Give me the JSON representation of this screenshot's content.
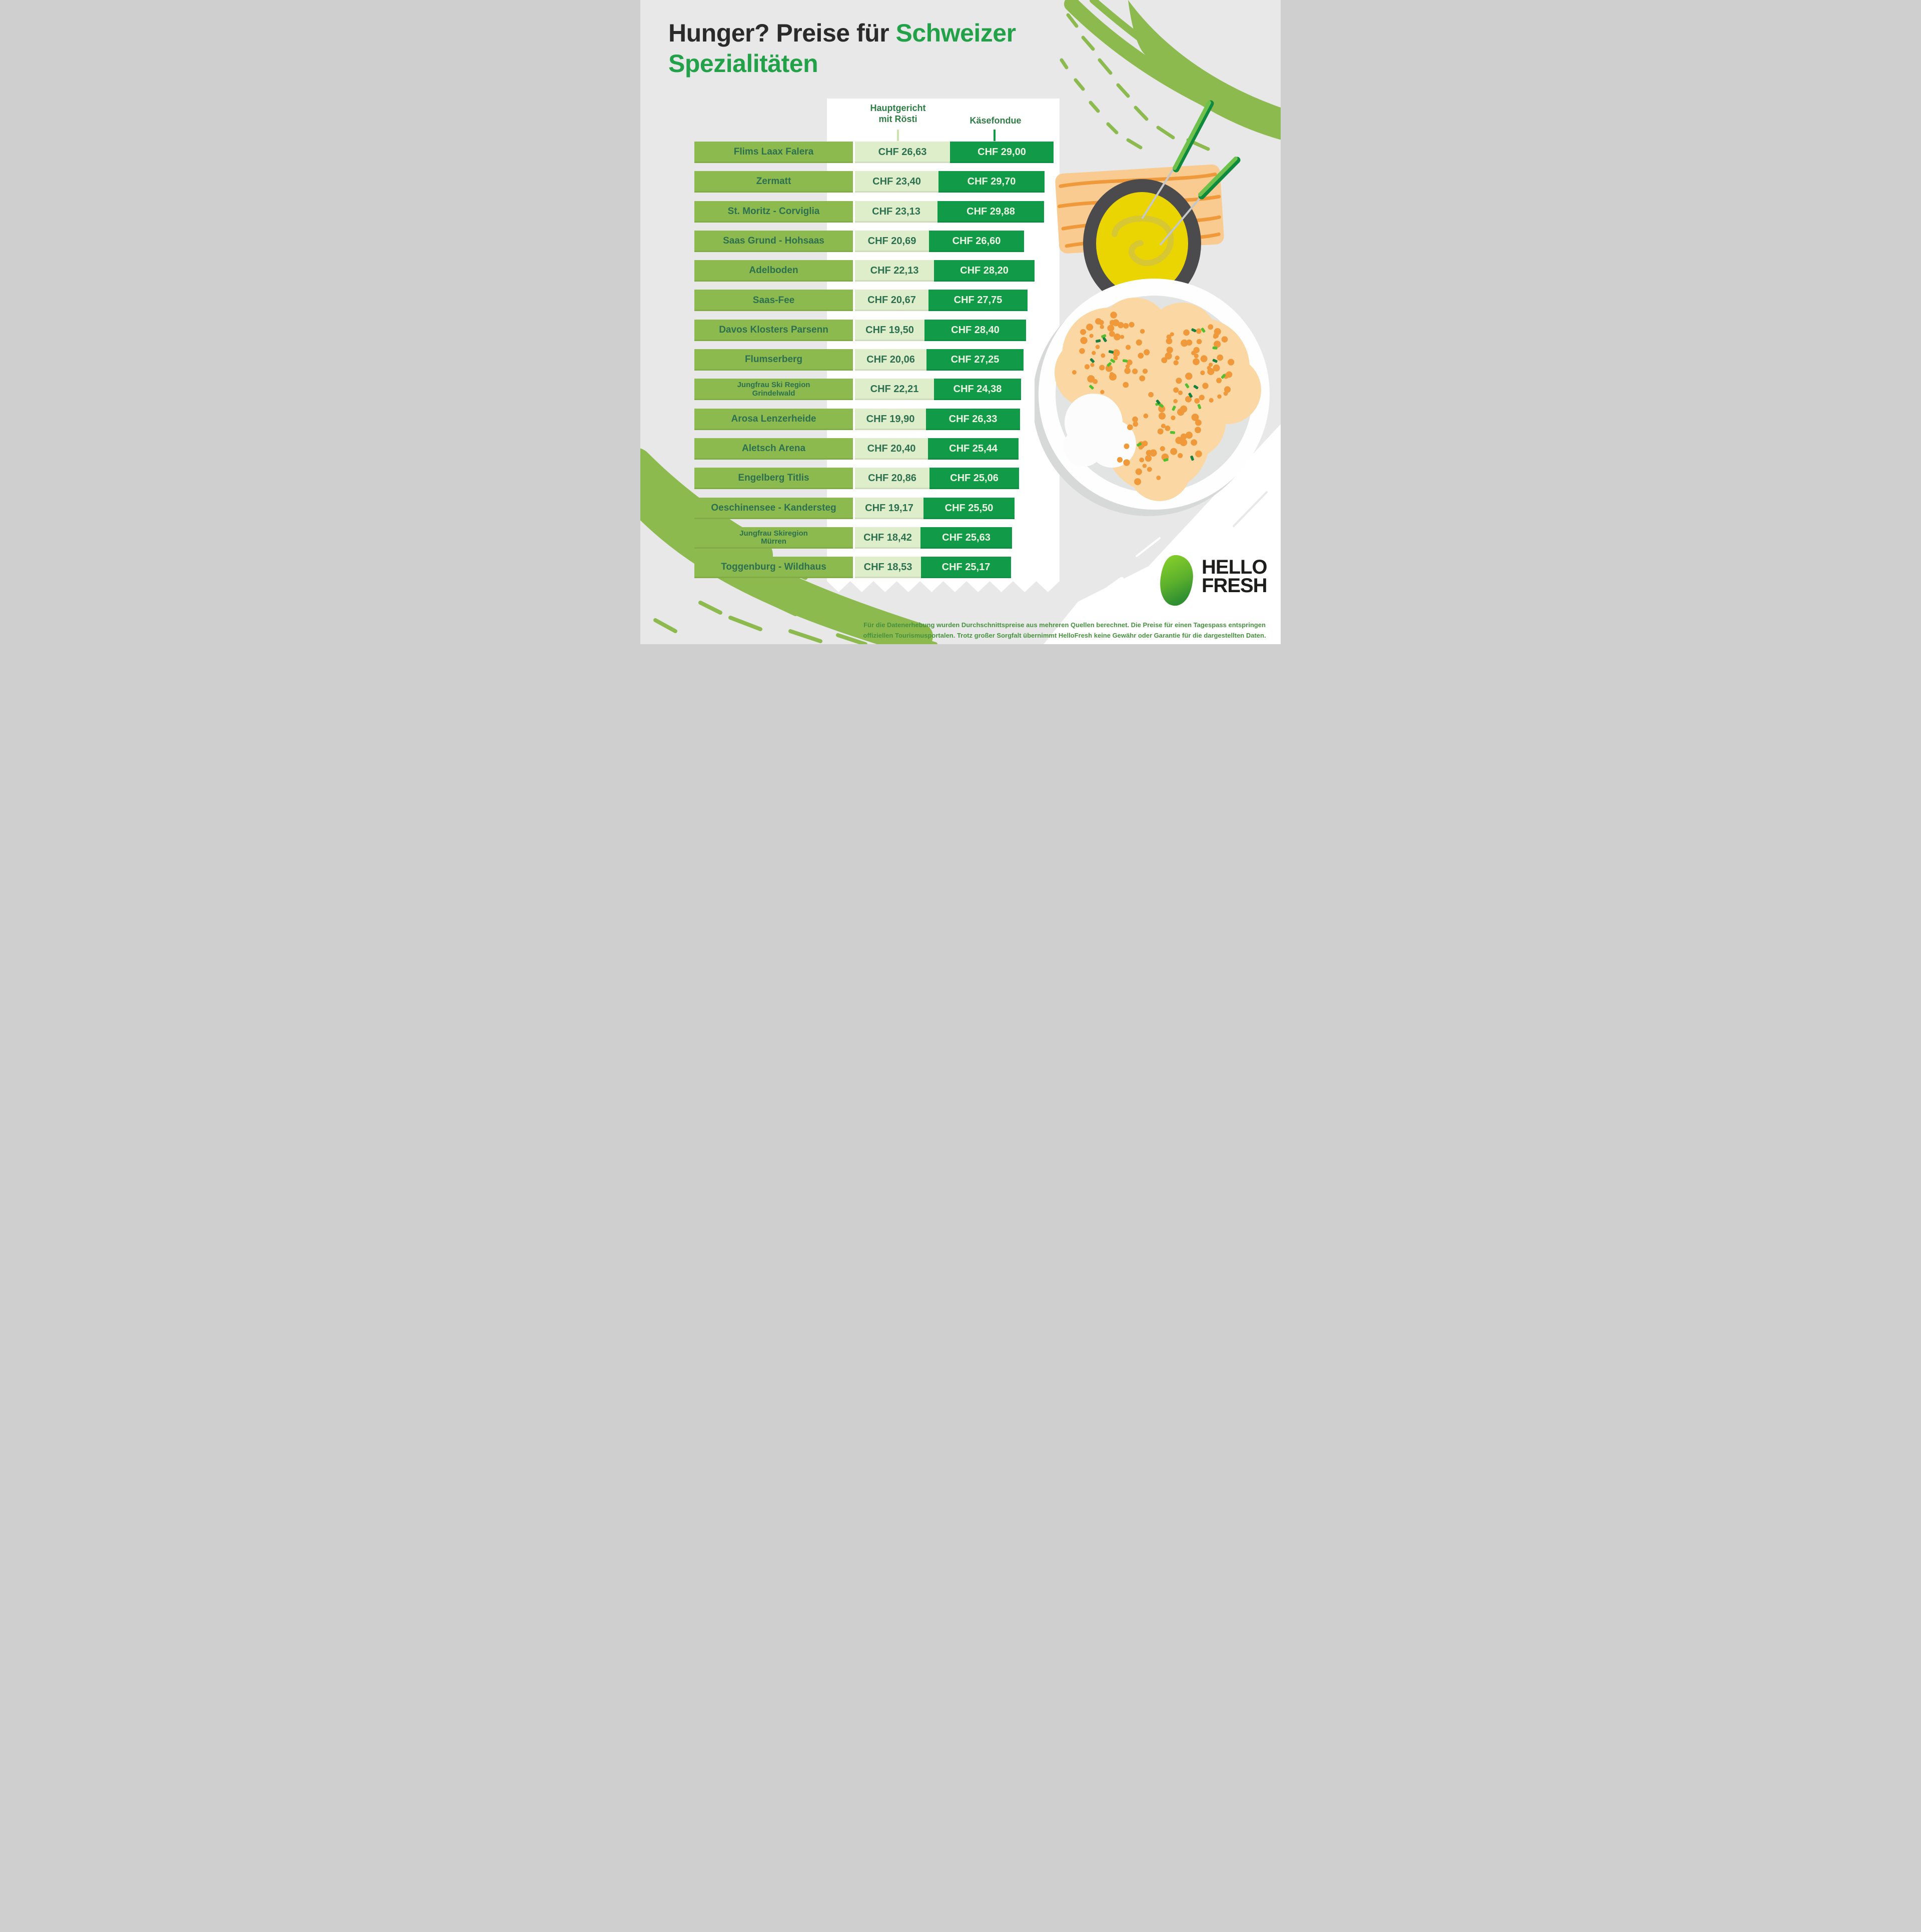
{
  "title": {
    "prefix": "Hunger? Preise für ",
    "highlight": "Schweizer",
    "line2": "Spezialitäten"
  },
  "columns": {
    "roesti": "Hauptgericht\nmit Rösti",
    "fondue": "Käsefondue"
  },
  "chart_data": {
    "type": "bar",
    "orientation": "horizontal",
    "unit": "CHF",
    "series": [
      "Hauptgericht mit Rösti",
      "Käsefondue"
    ],
    "rows": [
      {
        "region": "Flims Laax Falera",
        "roesti": 26.63,
        "fondue": 29.0,
        "roesti_label": "CHF 26,63",
        "fondue_label": "CHF 29,00"
      },
      {
        "region": "Zermatt",
        "roesti": 23.4,
        "fondue": 29.7,
        "roesti_label": "CHF 23,40",
        "fondue_label": "CHF 29,70"
      },
      {
        "region": "St. Moritz - Corviglia",
        "roesti": 23.13,
        "fondue": 29.88,
        "roesti_label": "CHF 23,13",
        "fondue_label": "CHF 29,88"
      },
      {
        "region": "Saas Grund - Hohsaas",
        "roesti": 20.69,
        "fondue": 26.6,
        "roesti_label": "CHF 20,69",
        "fondue_label": "CHF 26,60"
      },
      {
        "region": "Adelboden",
        "roesti": 22.13,
        "fondue": 28.2,
        "roesti_label": "CHF 22,13",
        "fondue_label": "CHF 28,20"
      },
      {
        "region": "Saas-Fee",
        "roesti": 20.67,
        "fondue": 27.75,
        "roesti_label": "CHF 20,67",
        "fondue_label": "CHF 27,75"
      },
      {
        "region": "Davos Klosters Parsenn",
        "roesti": 19.5,
        "fondue": 28.4,
        "roesti_label": "CHF 19,50",
        "fondue_label": "CHF 28,40"
      },
      {
        "region": "Flumserberg",
        "roesti": 20.06,
        "fondue": 27.25,
        "roesti_label": "CHF 20,06",
        "fondue_label": "CHF 27,25"
      },
      {
        "region": "Jungfrau Ski Region\nGrindelwald",
        "roesti": 22.21,
        "fondue": 24.38,
        "roesti_label": "CHF 22,21",
        "fondue_label": "CHF 24,38"
      },
      {
        "region": "Arosa Lenzerheide",
        "roesti": 19.9,
        "fondue": 26.33,
        "roesti_label": "CHF 19,90",
        "fondue_label": "CHF 26,33"
      },
      {
        "region": "Aletsch Arena",
        "roesti": 20.4,
        "fondue": 25.44,
        "roesti_label": "CHF 20,40",
        "fondue_label": "CHF 25,44"
      },
      {
        "region": "Engelberg Titlis",
        "roesti": 20.86,
        "fondue": 25.06,
        "roesti_label": "CHF 20,86",
        "fondue_label": "CHF 25,06"
      },
      {
        "region": "Oeschinensee - Kandersteg",
        "roesti": 19.17,
        "fondue": 25.5,
        "roesti_label": "CHF 19,17",
        "fondue_label": "CHF 25,50"
      },
      {
        "region": "Jungfrau Skiregion\nMürren",
        "roesti": 18.42,
        "fondue": 25.63,
        "roesti_label": "CHF 18,42",
        "fondue_label": "CHF 25,63"
      },
      {
        "region": "Toggenburg - Wildhaus",
        "roesti": 18.53,
        "fondue": 25.17,
        "roesti_label": "CHF 18,53",
        "fondue_label": "CHF 25,17"
      }
    ]
  },
  "footnote": {
    "line1": "Für die Datenerhebung wurden Durchschnittspreise aus mehreren Quellen berechnet. Die Preise für einen Tagespass entspringen",
    "line2": "offiziellen Tourismusportalen. Trotz großer Sorgfalt übernimmt HelloFresh keine Gewähr oder Garantie für die dargestellten Daten."
  },
  "logo": {
    "line1": "HELLO",
    "line2": "FRESH"
  },
  "colors": {
    "bg": "#E8E8E9",
    "bar-region": "#8CBA4E",
    "bar-light": "#DEEDCA",
    "bar-dark": "#119A48",
    "ink-green": "#2D7050",
    "header-green": "#2E7D45",
    "title-dark": "#2A2A2A",
    "title-green": "#23A149",
    "footnote-green": "#47913F",
    "logo-ink": "#1D1D1B"
  }
}
